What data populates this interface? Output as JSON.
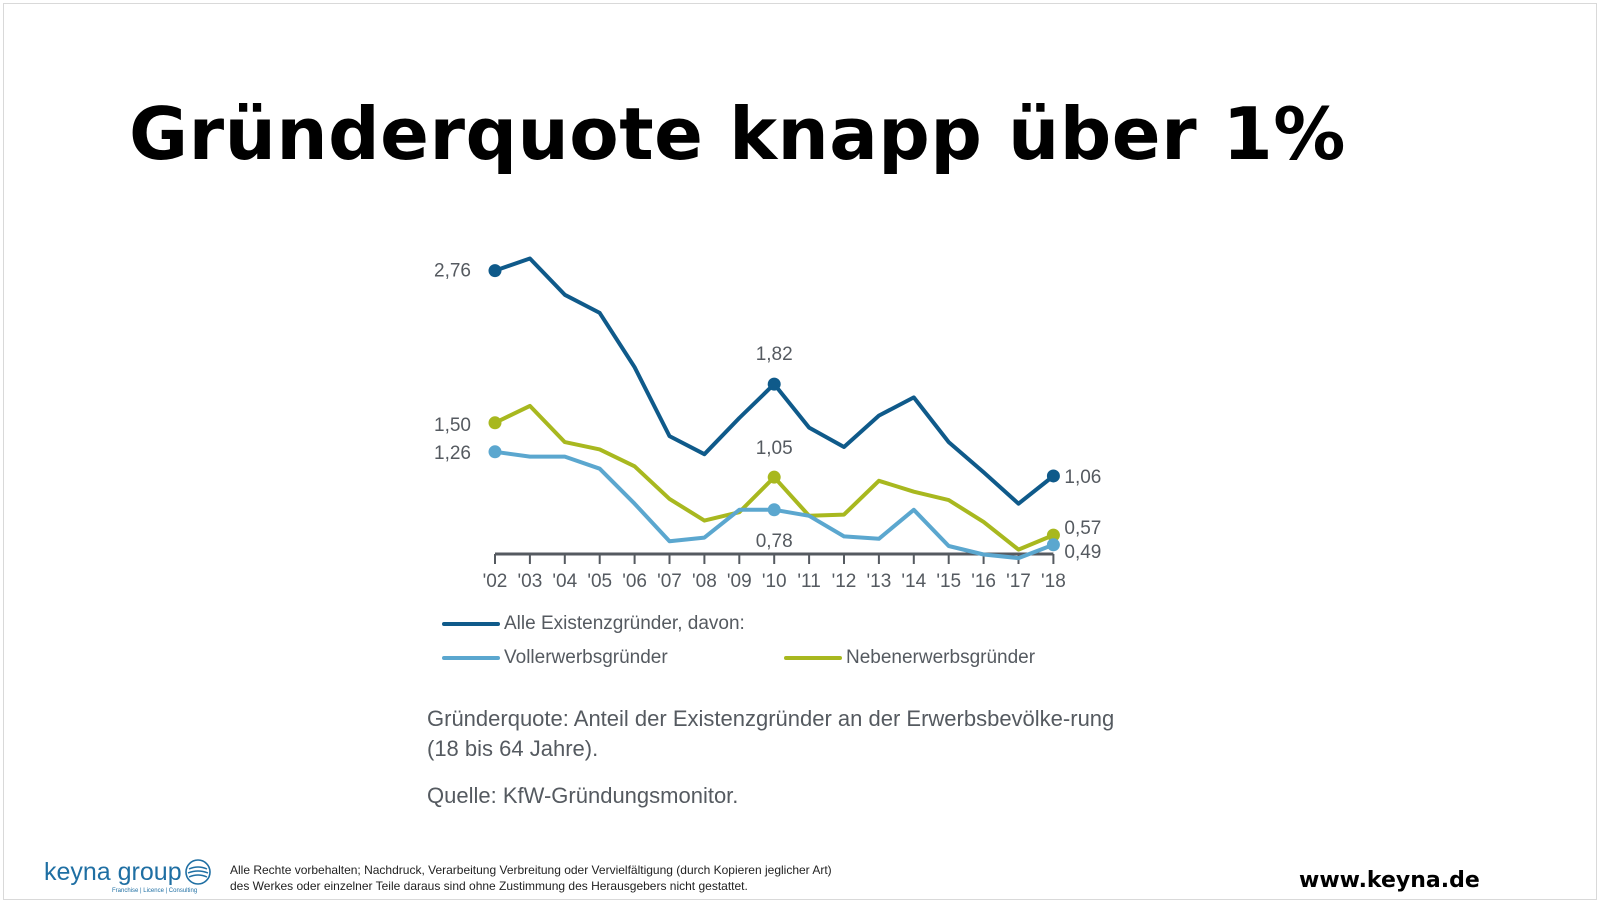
{
  "slide": {
    "title": "Gründerquote knapp über 1%",
    "note": "Gründerquote: Anteil der Existenzgründer an der Erwerbsbevölke-rung (18 bis 64 Jahre).",
    "source": "Quelle: KfW-Gründungsmonitor."
  },
  "footer": {
    "logo": "keyna group",
    "logo_tagline": "Franchise | Licence | Consulting",
    "copyright_line1": "Alle Rechte vorbehalten; Nachdruck, Verarbeitung Verbreitung oder Vervielfältigung (durch Kopieren jeglicher Art)",
    "copyright_line2": "des Werkes oder einzelner Teile daraus sind ohne Zustimmung des Herausgebers nicht gestattet.",
    "website": "www.keyna.de"
  },
  "chart_data": {
    "type": "line",
    "x": [
      "'02",
      "'03",
      "'04",
      "'05",
      "'06",
      "'07",
      "'08",
      "'09",
      "'10",
      "'11",
      "'12",
      "'13",
      "'14",
      "'15",
      "'16",
      "'17",
      "'18"
    ],
    "ylim": [
      0,
      3
    ],
    "grid": false,
    "legend": "bottom",
    "series": [
      {
        "name": "Alle Existenzgründer, davon:",
        "color": "#0f5a8a",
        "values": [
          2.76,
          2.86,
          2.56,
          2.41,
          1.96,
          1.39,
          1.24,
          1.54,
          1.82,
          1.46,
          1.3,
          1.56,
          1.71,
          1.34,
          1.09,
          0.83,
          1.06
        ],
        "labels": {
          "0": "2,76",
          "8": "1,82",
          "16": "1,06"
        }
      },
      {
        "name": "Vollerwerbsgründer",
        "color": "#5ba7cf",
        "values": [
          1.26,
          1.22,
          1.22,
          1.12,
          0.83,
          0.52,
          0.55,
          0.78,
          0.78,
          0.73,
          0.56,
          0.54,
          0.78,
          0.48,
          0.41,
          0.38,
          0.49
        ],
        "labels": {
          "0": "1,26",
          "8": "0,78",
          "16": "0,49"
        }
      },
      {
        "name": "Nebenerwerbsgründer",
        "color": "#a8b81f",
        "values": [
          1.5,
          1.64,
          1.34,
          1.28,
          1.14,
          0.87,
          0.69,
          0.76,
          1.05,
          0.73,
          0.74,
          1.02,
          0.93,
          0.86,
          0.68,
          0.45,
          0.57
        ],
        "labels": {
          "0": "1,50",
          "8": "1,05",
          "16": "0,57"
        }
      }
    ]
  }
}
